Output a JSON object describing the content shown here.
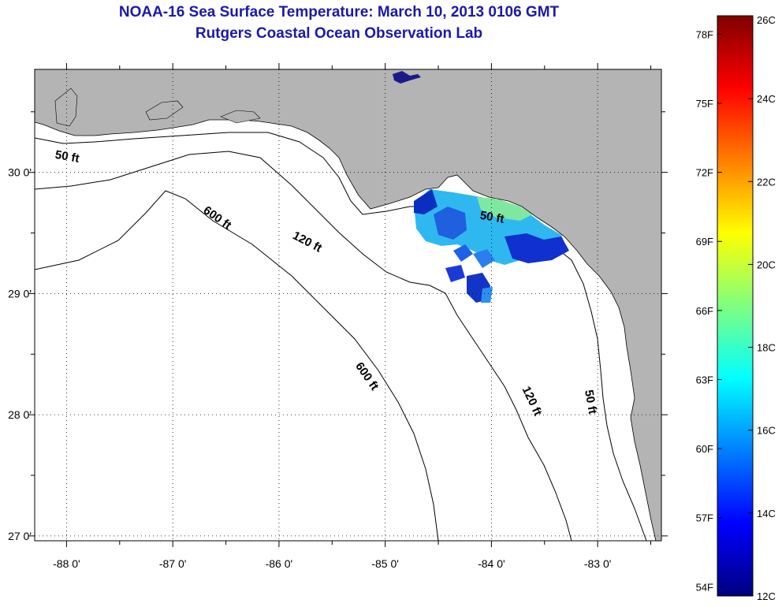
{
  "titles": {
    "line1": "NOAA-16 Sea Surface Temperature:  March 10, 2013 0106 GMT",
    "line2": "Rutgers Coastal Ocean Observation Lab"
  },
  "map": {
    "lon_range": [
      -88.3,
      -82.4
    ],
    "lat_range": [
      26.96,
      30.85
    ],
    "lon_ticks": [
      {
        "value": -88,
        "label": "-88 0'"
      },
      {
        "value": -87,
        "label": "-87 0'"
      },
      {
        "value": -86,
        "label": "-86 0'"
      },
      {
        "value": -85,
        "label": "-85 0'"
      },
      {
        "value": -84,
        "label": "-84 0'"
      },
      {
        "value": -83,
        "label": "-83 0'"
      }
    ],
    "lat_ticks": [
      {
        "value": 30,
        "label": "30 0'"
      },
      {
        "value": 29,
        "label": "29 0'"
      },
      {
        "value": 28,
        "label": "28 0'"
      },
      {
        "value": 27,
        "label": "27 0'"
      }
    ],
    "grid": "dotted",
    "land_color": "#b4b4b4",
    "water_color": "#ffffff",
    "contour_labels": [
      {
        "text": "50 ft",
        "lon": -88.0,
        "lat": 30.1
      },
      {
        "text": "600 ft",
        "lon": -86.6,
        "lat": 29.6
      },
      {
        "text": "120 ft",
        "lon": -85.75,
        "lat": 29.4
      },
      {
        "text": "50 ft",
        "lon": -84.0,
        "lat": 29.6
      },
      {
        "text": "600 ft",
        "lon": -85.2,
        "lat": 28.3
      },
      {
        "text": "120 ft",
        "lon": -83.65,
        "lat": 28.1
      },
      {
        "text": "50 ft",
        "lon": -83.1,
        "lat": 28.1
      }
    ]
  },
  "colorbar": {
    "colors": [
      "#00007f",
      "#0000ff",
      "#007fff",
      "#00ffff",
      "#7fff7f",
      "#ffff00",
      "#ff7f00",
      "#ff0000",
      "#7f0000"
    ],
    "celsius_range": [
      12,
      26
    ],
    "fahrenheit_labels": [
      "54F",
      "57F",
      "60F",
      "63F",
      "66F",
      "69F",
      "72F",
      "75F",
      "78F"
    ],
    "celsius_labels": [
      "12C",
      "14C",
      "16C",
      "18C",
      "20C",
      "22C",
      "24C",
      "26C"
    ]
  }
}
